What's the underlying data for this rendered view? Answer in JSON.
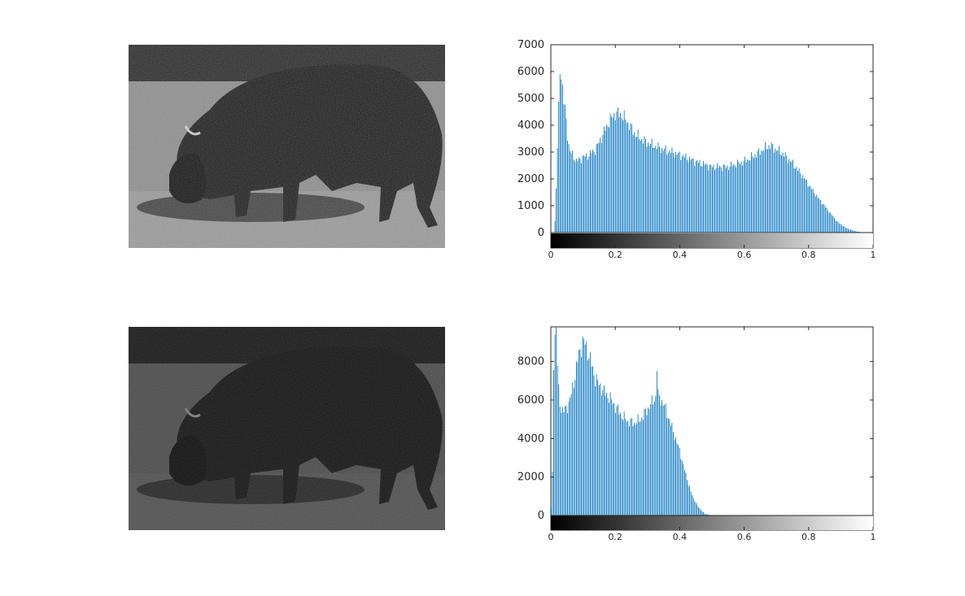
{
  "figure": {
    "panels": [
      {
        "name": "original-image",
        "description_shown": "grayscale photo of a bison grazing on grass"
      },
      {
        "name": "darkened-image",
        "description_shown": "darker grayscale photo of the same bison"
      }
    ]
  },
  "chart_data": [
    {
      "type": "bar",
      "title": "",
      "xlabel": "",
      "ylabel": "",
      "xlim": [
        0,
        1
      ],
      "ylim": [
        0,
        7000
      ],
      "yticks": [
        0,
        1000,
        2000,
        3000,
        4000,
        5000,
        6000,
        7000
      ],
      "xticks": [
        0,
        0.2,
        0.4,
        0.6,
        0.8,
        1
      ],
      "bar_color": "#0072BD",
      "colorbar": "gray",
      "bins": 256,
      "profile_points": [
        [
          0.0,
          0
        ],
        [
          0.01,
          0
        ],
        [
          0.015,
          600
        ],
        [
          0.02,
          2600
        ],
        [
          0.025,
          4500
        ],
        [
          0.03,
          5900
        ],
        [
          0.035,
          5700
        ],
        [
          0.04,
          4900
        ],
        [
          0.045,
          4600
        ],
        [
          0.05,
          4000
        ],
        [
          0.055,
          3400
        ],
        [
          0.06,
          3000
        ],
        [
          0.07,
          2900
        ],
        [
          0.08,
          2650
        ],
        [
          0.1,
          2800
        ],
        [
          0.12,
          2900
        ],
        [
          0.14,
          3100
        ],
        [
          0.16,
          3600
        ],
        [
          0.18,
          4100
        ],
        [
          0.2,
          4450
        ],
        [
          0.22,
          4400
        ],
        [
          0.24,
          4100
        ],
        [
          0.26,
          3700
        ],
        [
          0.28,
          3500
        ],
        [
          0.3,
          3350
        ],
        [
          0.35,
          3100
        ],
        [
          0.4,
          2900
        ],
        [
          0.45,
          2650
        ],
        [
          0.5,
          2450
        ],
        [
          0.55,
          2450
        ],
        [
          0.6,
          2650
        ],
        [
          0.63,
          2850
        ],
        [
          0.66,
          3100
        ],
        [
          0.68,
          3250
        ],
        [
          0.7,
          3100
        ],
        [
          0.72,
          2950
        ],
        [
          0.75,
          2600
        ],
        [
          0.78,
          2150
        ],
        [
          0.8,
          1800
        ],
        [
          0.83,
          1300
        ],
        [
          0.86,
          850
        ],
        [
          0.89,
          400
        ],
        [
          0.92,
          150
        ],
        [
          0.95,
          40
        ],
        [
          0.97,
          0
        ],
        [
          1.0,
          0
        ]
      ],
      "spikes": [
        [
          0.031,
          5900
        ],
        [
          0.035,
          5700
        ]
      ]
    },
    {
      "type": "bar",
      "title": "",
      "xlabel": "",
      "ylabel": "",
      "xlim": [
        0,
        1
      ],
      "ylim": [
        0,
        9800
      ],
      "yticks": [
        0,
        2000,
        4000,
        6000,
        8000
      ],
      "xticks": [
        0,
        0.2,
        0.4,
        0.6,
        0.8,
        1
      ],
      "bar_color": "#0072BD",
      "colorbar": "gray",
      "bins": 256,
      "profile_points": [
        [
          0.0,
          0
        ],
        [
          0.005,
          900
        ],
        [
          0.01,
          8400
        ],
        [
          0.015,
          9800
        ],
        [
          0.02,
          8400
        ],
        [
          0.025,
          6500
        ],
        [
          0.03,
          5700
        ],
        [
          0.04,
          5400
        ],
        [
          0.05,
          5600
        ],
        [
          0.06,
          6000
        ],
        [
          0.07,
          6700
        ],
        [
          0.08,
          7700
        ],
        [
          0.09,
          8500
        ],
        [
          0.1,
          9100
        ],
        [
          0.11,
          8800
        ],
        [
          0.12,
          8300
        ],
        [
          0.13,
          7600
        ],
        [
          0.14,
          7100
        ],
        [
          0.15,
          6800
        ],
        [
          0.16,
          6600
        ],
        [
          0.17,
          6300
        ],
        [
          0.18,
          6200
        ],
        [
          0.2,
          5700
        ],
        [
          0.22,
          5200
        ],
        [
          0.24,
          4900
        ],
        [
          0.26,
          4800
        ],
        [
          0.28,
          5000
        ],
        [
          0.3,
          5500
        ],
        [
          0.32,
          6000
        ],
        [
          0.33,
          6300
        ],
        [
          0.34,
          6100
        ],
        [
          0.35,
          5800
        ],
        [
          0.36,
          5400
        ],
        [
          0.38,
          4400
        ],
        [
          0.4,
          3400
        ],
        [
          0.42,
          2100
        ],
        [
          0.44,
          1000
        ],
        [
          0.46,
          400
        ],
        [
          0.48,
          80
        ],
        [
          0.5,
          0
        ],
        [
          1.0,
          0
        ]
      ],
      "spikes": [
        [
          0.016,
          9800
        ],
        [
          0.098,
          9300
        ],
        [
          0.332,
          7500
        ]
      ]
    }
  ]
}
